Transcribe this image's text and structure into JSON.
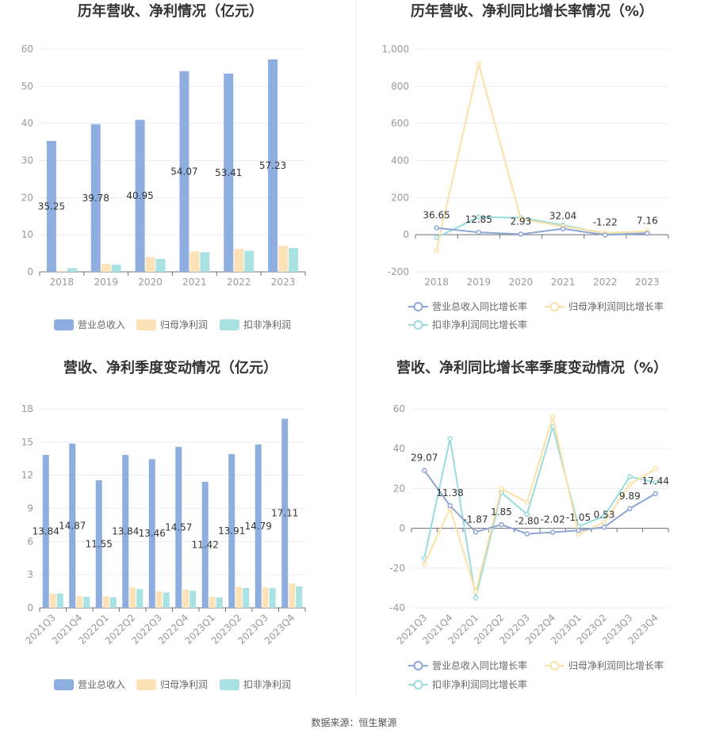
{
  "colors": {
    "revenue": "#8eaedf",
    "net_profit": "#fde2b8",
    "deducted_profit": "#a9e2e3",
    "revenue_line": "#8ea6d6",
    "net_profit_line": "#fde0a6",
    "deducted_line": "#9adcdc",
    "grid": "#e9ecf2",
    "axis": "#6e7079"
  },
  "source_text": "数据来源：恒生聚源",
  "chart_data": [
    {
      "type": "bar",
      "title": "历年营收、净利情况（亿元）",
      "categories": [
        "2018",
        "2019",
        "2020",
        "2021",
        "2022",
        "2023"
      ],
      "ylim": [
        0,
        60
      ],
      "yticks": [
        "0",
        "10",
        "20",
        "30",
        "40",
        "50",
        "60"
      ],
      "series": [
        {
          "name": "营业总收入",
          "values": [
            35.25,
            39.78,
            40.95,
            54.07,
            53.41,
            57.23
          ],
          "labels": [
            "35.25",
            "39.78",
            "40.95",
            "54.07",
            "53.41",
            "57.23"
          ]
        },
        {
          "name": "归母净利润",
          "values": [
            0.3,
            2.1,
            4.0,
            5.5,
            6.2,
            7.0
          ]
        },
        {
          "name": "扣非净利润",
          "values": [
            1.0,
            1.9,
            3.5,
            5.3,
            5.7,
            6.4
          ]
        }
      ],
      "legend": "bottom"
    },
    {
      "type": "line",
      "title": "历年营收、净利同比增长率情况（%）",
      "categories": [
        "2018",
        "2019",
        "2020",
        "2021",
        "2022",
        "2023"
      ],
      "ylim": [
        -200,
        1000
      ],
      "yticks": [
        "-200",
        "0",
        "200",
        "400",
        "600",
        "800",
        "1,000"
      ],
      "series": [
        {
          "name": "营业总收入同比增长率",
          "values": [
            36.65,
            12.85,
            2.93,
            32.04,
            -1.22,
            7.16
          ],
          "labels": [
            "36.65",
            "12.85",
            "2.93",
            "32.04",
            "-1.22",
            "7.16"
          ]
        },
        {
          "name": "归母净利润同比增长率",
          "values": [
            -85,
            920,
            85,
            45,
            10,
            18
          ]
        },
        {
          "name": "扣非净利润同比增长率",
          "values": [
            -15,
            95,
            92,
            52,
            7,
            14
          ]
        }
      ],
      "legend": "bottom"
    },
    {
      "type": "bar",
      "title": "营收、净利季度变动情况（亿元）",
      "categories": [
        "2021Q3",
        "2021Q4",
        "2022Q1",
        "2022Q2",
        "2022Q3",
        "2022Q4",
        "2023Q1",
        "2023Q2",
        "2023Q3",
        "2023Q4"
      ],
      "ylim": [
        0,
        18
      ],
      "yticks": [
        "0",
        "3",
        "6",
        "9",
        "12",
        "15",
        "18"
      ],
      "series": [
        {
          "name": "营业总收入",
          "values": [
            13.84,
            14.87,
            11.55,
            13.84,
            13.46,
            14.57,
            11.42,
            13.91,
            14.79,
            17.11
          ],
          "labels": [
            "13.84",
            "14.87",
            "11.55",
            "13.84",
            "13.46",
            "14.57",
            "11.42",
            "13.91",
            "14.79",
            "17.11"
          ]
        },
        {
          "name": "归母净利润",
          "values": [
            1.3,
            1.05,
            1.05,
            1.85,
            1.5,
            1.65,
            1.0,
            1.9,
            1.85,
            2.2
          ]
        },
        {
          "name": "扣非净利润",
          "values": [
            1.3,
            1.0,
            0.95,
            1.7,
            1.4,
            1.55,
            0.95,
            1.8,
            1.8,
            1.95
          ]
        }
      ],
      "legend": "bottom"
    },
    {
      "type": "line",
      "title": "营收、净利同比增长率季度变动情况（%）",
      "categories": [
        "2021Q3",
        "2021Q4",
        "2022Q1",
        "2022Q2",
        "2022Q3",
        "2022Q4",
        "2023Q1",
        "2023Q2",
        "2023Q3",
        "2023Q4"
      ],
      "ylim": [
        -40,
        60
      ],
      "yticks": [
        "-40",
        "-20",
        "0",
        "20",
        "40",
        "60"
      ],
      "series": [
        {
          "name": "营业总收入同比增长率",
          "values": [
            29.07,
            11.38,
            -1.87,
            1.85,
            -2.8,
            -2.02,
            -1.05,
            0.53,
            9.89,
            17.44
          ],
          "labels": [
            "29.07",
            "11.38",
            "-1.87",
            "1.85",
            "-2.80",
            "-2.02",
            "-1.05",
            "0.53",
            "9.89",
            "17.44"
          ]
        },
        {
          "name": "归母净利润同比增长率",
          "values": [
            -18,
            10,
            -32,
            20,
            13,
            56,
            -3,
            3,
            22,
            30
          ]
        },
        {
          "name": "扣非净利润同比增长率",
          "values": [
            -15,
            45,
            -35,
            18,
            7,
            51,
            1,
            6,
            26,
            23
          ]
        }
      ],
      "legend": "bottom"
    }
  ]
}
